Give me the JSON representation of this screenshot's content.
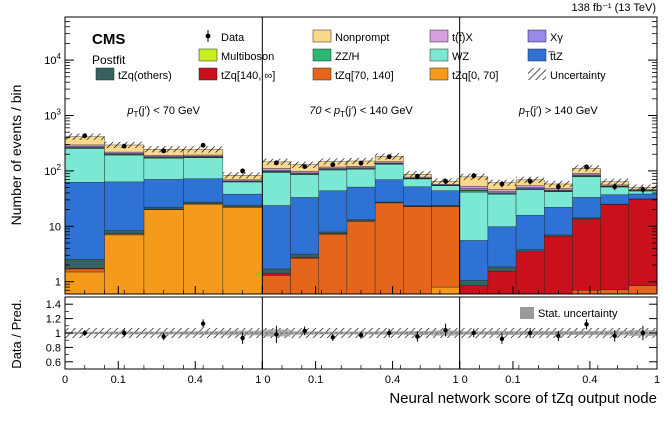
{
  "header": {
    "lumi": "138 fb⁻¹ (13 TeV)",
    "experiment": "CMS",
    "postfit": "Postfit"
  },
  "chart_data": {
    "type": "stacked-bar-log",
    "title": "",
    "ylabel": "Number of events / bin",
    "xlabel": "Neural network score of tZq output node",
    "ylim": [
      0.6,
      60000
    ],
    "yticks": [
      "1",
      "10",
      "10²",
      "10³",
      "10⁴"
    ],
    "ratio_panel": {
      "ylabel": "Data / Pred.",
      "ylim": [
        0.5,
        1.5
      ],
      "yticks": [
        "0.6",
        "0.8",
        "1",
        "1.2",
        "1.4"
      ],
      "legend": "Stat. uncertainty",
      "ratios": [
        1.0,
        1.0,
        0.95,
        1.13,
        0.93,
        0.98,
        1.03,
        0.94,
        0.97,
        1.0,
        0.95,
        1.04,
        1.0,
        0.92,
        1.0,
        0.96,
        1.12,
        0.96,
        1.0
      ],
      "errors": [
        0.04,
        0.05,
        0.05,
        0.06,
        0.08,
        0.12,
        0.06,
        0.05,
        0.05,
        0.06,
        0.07,
        0.09,
        0.06,
        0.07,
        0.07,
        0.07,
        0.07,
        0.08,
        0.1
      ]
    },
    "regions": [
      {
        "label": "p_T(j′) < 70 GeV",
        "sub": "T",
        "prefix": "p",
        "suffix": "(j′) < 70 GeV"
      },
      {
        "label": "70 < p_T(j′) < 140 GeV",
        "sub": "T",
        "prefix": "70 < p",
        "suffix": "(j′) < 140 GeV"
      },
      {
        "label": "p_T(j′) > 140 GeV",
        "sub": "T",
        "prefix": "p",
        "suffix": "(j′) > 140 GeV"
      }
    ],
    "x_tick_labels": [
      "0",
      "0.1",
      "0.4",
      "1",
      "0",
      "0.1",
      "0.4",
      "1",
      "0",
      "0.1",
      "0.4",
      "1"
    ],
    "bins_per_region": [
      5,
      7,
      7
    ],
    "legend": [
      "Data",
      "Nonprompt",
      "t(t̅)X",
      "Xγ",
      "Multiboson",
      "ZZ/H",
      "WZ",
      "t̅tZ",
      "tZq(others)",
      "tZq[140, ∞]",
      "tZq[70, 140]",
      "tZq[0, 70]",
      "Uncertainty"
    ],
    "series": [
      {
        "name": "tZq[0, 70]",
        "color": "#f59a1b",
        "values": [
          1.5,
          7,
          20,
          25,
          22,
          0.1,
          0.15,
          0.2,
          0.3,
          0.4,
          0.6,
          0.8,
          0.05,
          0.05,
          0.08,
          0.1,
          0.1,
          0.12,
          0.15
        ]
      },
      {
        "name": "tZq[70, 140]",
        "color": "#e5661b",
        "values": [
          0.2,
          0.3,
          0.4,
          0.4,
          0.3,
          1.2,
          2.5,
          7,
          12,
          26,
          22,
          22,
          0.2,
          0.3,
          0.4,
          0.5,
          0.6,
          0.6,
          0.7
        ]
      },
      {
        "name": "tZq[140, ∞]",
        "color": "#c9101c",
        "values": [
          0.05,
          0.05,
          0.05,
          0.05,
          0.05,
          0.1,
          0.1,
          0.2,
          0.2,
          0.3,
          0.3,
          0.3,
          0.6,
          1.2,
          3,
          6,
          13,
          24,
          30
        ]
      },
      {
        "name": "tZq(others)",
        "color": "#35625f",
        "values": [
          0.8,
          1.0,
          1.6,
          2.0,
          1.8,
          0.3,
          0.4,
          0.5,
          0.6,
          0.8,
          0.8,
          0.8,
          0.2,
          0.3,
          0.3,
          0.4,
          0.5,
          0.5,
          0.5
        ]
      },
      {
        "name": "t̅tZ",
        "color": "#2f72d6",
        "values": [
          60,
          55,
          48,
          45,
          14,
          22,
          30,
          36,
          38,
          42,
          28,
          20,
          4.5,
          8,
          12,
          15,
          19,
          12,
          7
        ]
      },
      {
        "name": "WZ",
        "color": "#7be8d3",
        "values": [
          190,
          130,
          100,
          100,
          25,
          70,
          52,
          60,
          56,
          62,
          20,
          10,
          36,
          28,
          30,
          20,
          45,
          14,
          5
        ]
      },
      {
        "name": "ZZ/H",
        "color": "#2bb673",
        "values": [
          10,
          6,
          5,
          5,
          1.5,
          4,
          3,
          3,
          3,
          3.5,
          1.2,
          0.8,
          2.5,
          1.5,
          1.5,
          1.2,
          2.5,
          0.8,
          0.5
        ]
      },
      {
        "name": "Multiboson",
        "color": "#c5f01c",
        "values": [
          2,
          1.5,
          1.2,
          1.2,
          0.4,
          1,
          0.8,
          0.8,
          0.8,
          1,
          0.4,
          0.3,
          1,
          0.6,
          0.6,
          0.4,
          1,
          0.3,
          0.2
        ]
      },
      {
        "name": "Xγ",
        "color": "#9b88ec",
        "values": [
          10,
          6,
          5,
          5,
          1,
          4,
          3,
          3,
          3,
          3,
          1,
          0.6,
          3,
          2,
          2,
          1.5,
          3,
          1,
          0.5
        ]
      },
      {
        "name": "t(t̅)X",
        "color": "#d79fdd",
        "values": [
          20,
          12,
          10,
          10,
          3,
          8,
          7,
          7,
          7,
          8,
          3,
          2,
          5,
          4,
          4,
          3,
          6,
          2.5,
          1.5
        ]
      },
      {
        "name": "Nonprompt",
        "color": "#fad98a",
        "values": [
          120,
          75,
          55,
          50,
          14,
          35,
          30,
          30,
          30,
          35,
          10,
          7,
          25,
          15,
          15,
          10,
          20,
          8,
          4
        ]
      }
    ],
    "data_points": [
      430,
      280,
      230,
      290,
      100,
      140,
      120,
      130,
      138,
      180,
      80,
      65,
      82,
      58,
      65,
      52,
      118,
      52,
      46
    ]
  }
}
